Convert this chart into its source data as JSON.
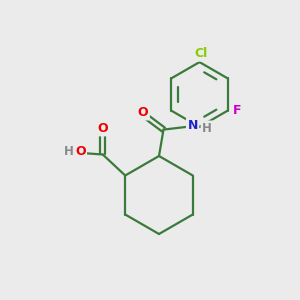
{
  "background_color": "#ebebeb",
  "bond_color": "#3a7a3a",
  "atom_colors": {
    "O": "#ee0000",
    "N": "#2222cc",
    "Cl": "#88cc00",
    "F": "#cc00cc",
    "H": "#888888"
  },
  "figsize": [
    3.0,
    3.0
  ],
  "dpi": 100,
  "xlim": [
    0,
    10
  ],
  "ylim": [
    0,
    10
  ]
}
